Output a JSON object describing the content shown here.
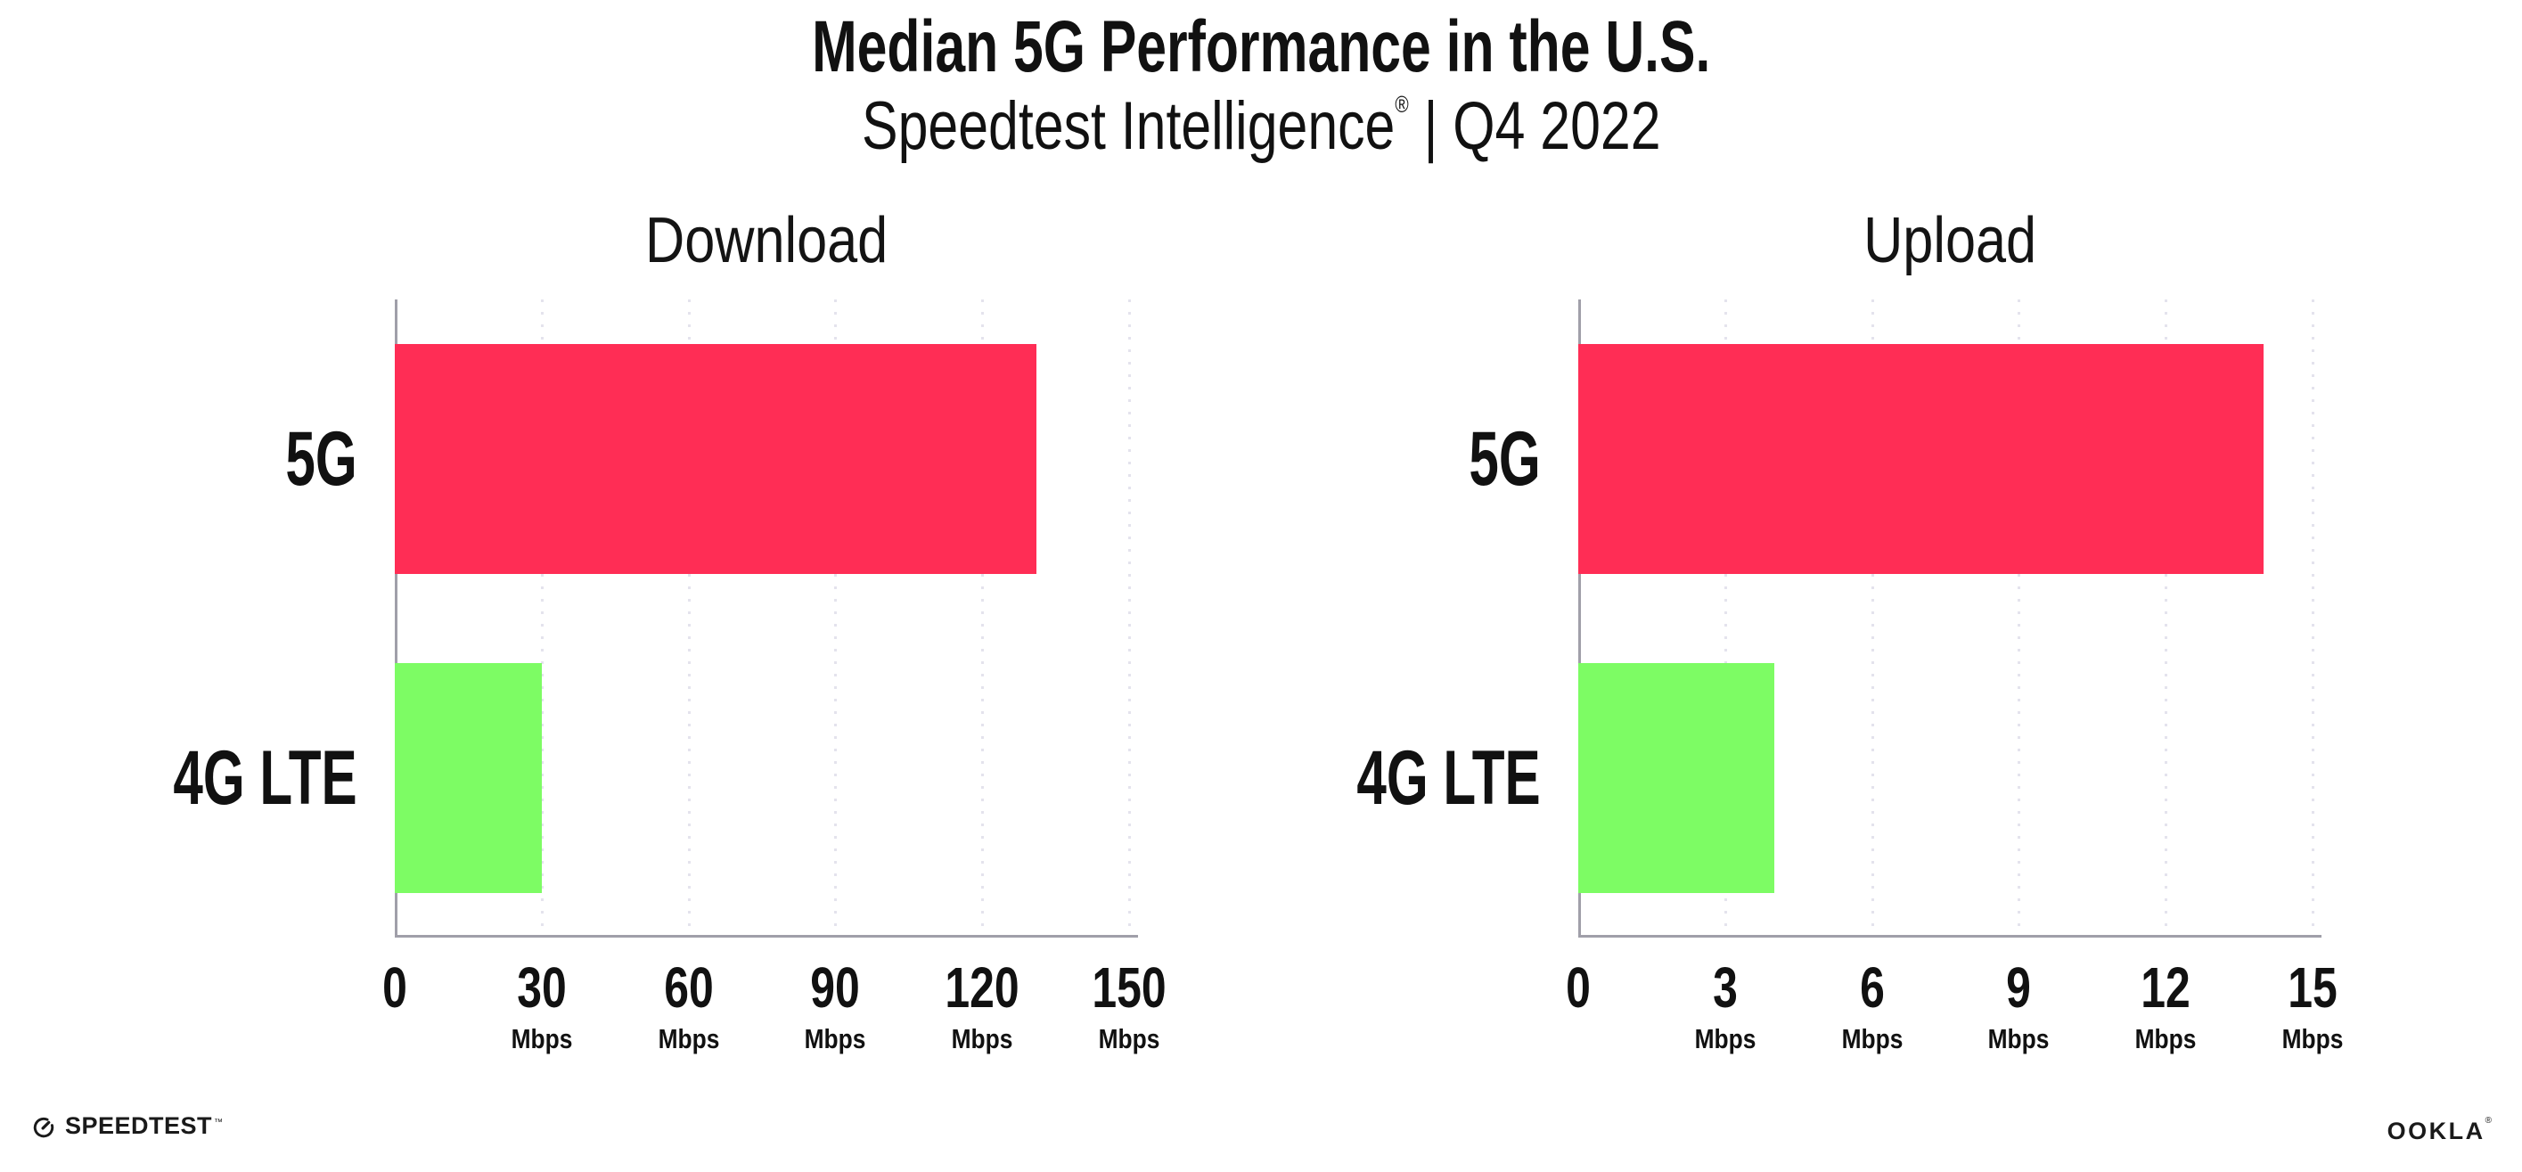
{
  "header": {
    "title": "Median 5G Performance in the U.S.",
    "subtitle_brand": "Speedtest Intelligence",
    "subtitle_reg": "®",
    "subtitle_rest": " | Q4 2022"
  },
  "colors": {
    "bar_5g": "#FF2D55",
    "bar_4g_lte": "#7DFC64",
    "axis": "#a09fa9",
    "gridline": "#e4e3ed",
    "text": "#111111"
  },
  "chart_data": [
    {
      "type": "bar",
      "orientation": "horizontal",
      "title": "Download",
      "categories": [
        "5G",
        "4G LTE"
      ],
      "values": [
        131,
        30
      ],
      "unit": "Mbps",
      "xticks": [
        0,
        30,
        60,
        90,
        120,
        150
      ],
      "xlim": [
        0,
        151.8
      ],
      "grid": "dotted-vertical",
      "legend": "none",
      "bar_colors": [
        "#FF2D55",
        "#7DFC64"
      ]
    },
    {
      "type": "bar",
      "orientation": "horizontal",
      "title": "Upload",
      "categories": [
        "5G",
        "4G LTE"
      ],
      "values": [
        14,
        4
      ],
      "unit": "Mbps",
      "xticks": [
        0,
        3,
        6,
        9,
        12,
        15
      ],
      "xlim": [
        0,
        15.18
      ],
      "grid": "dotted-vertical",
      "legend": "none",
      "bar_colors": [
        "#FF2D55",
        "#7DFC64"
      ]
    }
  ],
  "footer": {
    "speedtest_label": "SPEEDTEST",
    "speedtest_reg": "™",
    "ookla_label": "OOKLA",
    "ookla_reg": "®"
  }
}
